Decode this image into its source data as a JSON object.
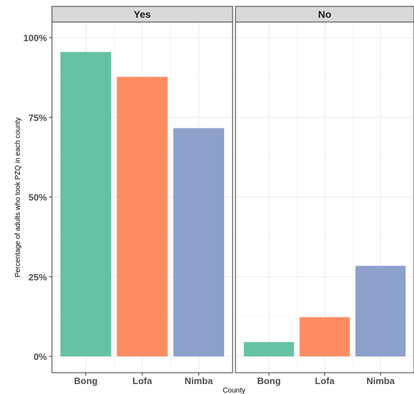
{
  "chart_data": {
    "type": "bar",
    "facets": [
      "Yes",
      "No"
    ],
    "categories": [
      "Bong",
      "Lofa",
      "Nimba"
    ],
    "series": [
      {
        "facet": "Yes",
        "values": [
          95.5,
          87.7,
          71.6
        ]
      },
      {
        "facet": "No",
        "values": [
          4.5,
          12.3,
          28.4
        ]
      }
    ],
    "colors": [
      "#66c2a5",
      "#fc8d62",
      "#8da0cb"
    ],
    "xlabel": "County",
    "ylabel": "Percentage of adults who took PZQ in each county",
    "ylim": [
      0,
      100
    ],
    "yticks": [
      0,
      25,
      50,
      75,
      100
    ],
    "ytick_labels": [
      "0%",
      "25%",
      "50%",
      "75%",
      "100%"
    ],
    "grid": true,
    "legend": "none"
  }
}
